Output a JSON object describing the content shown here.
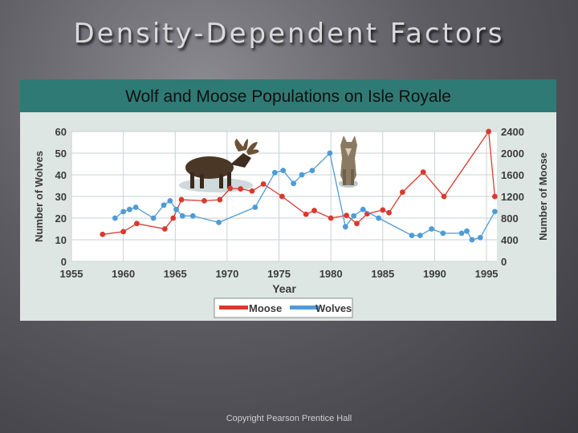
{
  "slide": {
    "title": "Density-Dependent Factors",
    "footer": "Copyright Pearson Prentice Hall"
  },
  "chart_data": {
    "type": "line",
    "title": "Wolf and Moose Populations on Isle Royale",
    "xlabel": "Year",
    "ylabel_left": "Number of Wolves",
    "ylabel_right": "Number of Moose",
    "xlim": [
      1955,
      1996
    ],
    "ylim_left": [
      0,
      60
    ],
    "ylim_right": [
      0,
      2400
    ],
    "x_ticks": [
      "1955",
      "1960",
      "1965",
      "1970",
      "1975",
      "1980",
      "1985",
      "1990",
      "1995"
    ],
    "y_ticks_left": [
      "0",
      "10",
      "20",
      "30",
      "40",
      "50",
      "60"
    ],
    "y_ticks_right": [
      "0",
      "400",
      "800",
      "1200",
      "1600",
      "2000",
      "2400"
    ],
    "grid": true,
    "legend_position": "bottom-center",
    "series": [
      {
        "name": "Moose",
        "axis": "right",
        "color": "#d83a2e",
        "x": [
          1958,
          1960,
          1961.3,
          1964,
          1964.8,
          1965.6,
          1967.8,
          1969.3,
          1970.3,
          1971.3,
          1972.4,
          1973.5,
          1975.3,
          1977.6,
          1978.4,
          1980,
          1981.5,
          1982.5,
          1983.5,
          1985,
          1985.6,
          1986.9,
          1988.9,
          1990.9,
          1995.2,
          1995.8
        ],
        "y": [
          500,
          550,
          700,
          600,
          800,
          1140,
          1120,
          1140,
          1350,
          1340,
          1300,
          1430,
          1200,
          870,
          940,
          800,
          850,
          700,
          880,
          950,
          900,
          1280,
          1650,
          1200,
          2400,
          1200
        ]
      },
      {
        "name": "Wolves",
        "axis": "left",
        "color": "#4f9bd6",
        "x": [
          1959.2,
          1960,
          1960.6,
          1961.2,
          1962.9,
          1963.9,
          1964.5,
          1965.1,
          1965.7,
          1966.7,
          1969.2,
          1972.7,
          1974.6,
          1975.4,
          1976.4,
          1977.2,
          1978.2,
          1979.9,
          1981.4,
          1982.2,
          1983.1,
          1984.6,
          1987.8,
          1988.6,
          1989.7,
          1990.8,
          1992.6,
          1993.1,
          1993.6,
          1994.4,
          1995.8
        ],
        "y": [
          20,
          23,
          24,
          25,
          20,
          26,
          28,
          24,
          21,
          21,
          18,
          25,
          41,
          42,
          36,
          40,
          42,
          50,
          16,
          21,
          24,
          20,
          12,
          12,
          15,
          13,
          13,
          14,
          10,
          11,
          23
        ]
      }
    ]
  }
}
